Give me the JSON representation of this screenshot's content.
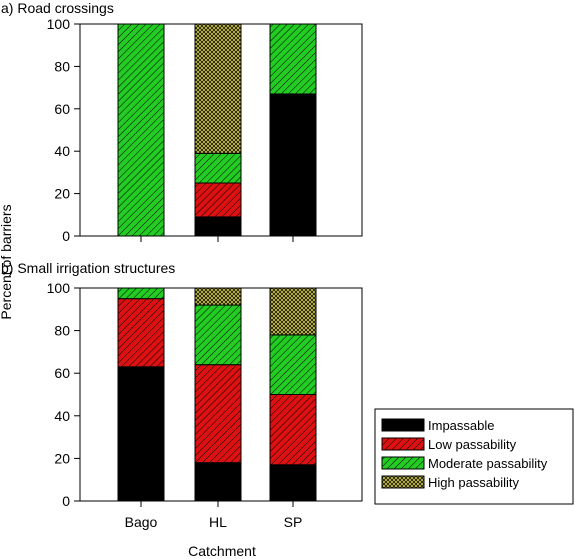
{
  "figure": {
    "ylabel": "Percent of barriers",
    "xlabel": "Catchment"
  },
  "legend": {
    "placement": "bottom-right",
    "items": [
      {
        "key": "impassable",
        "label": "Impassable"
      },
      {
        "key": "low",
        "label": "Low passability"
      },
      {
        "key": "moderate",
        "label": "Moderate passability"
      },
      {
        "key": "high",
        "label": "High passability"
      }
    ]
  },
  "colors": {
    "impassable": "#000000",
    "low": "#dd1111",
    "moderate": "#22cc22",
    "high": "#c9c244"
  },
  "chart_data": [
    {
      "type": "bar",
      "stacked": true,
      "title": "a) Road crossings",
      "categories": [
        "Bago",
        "HL",
        "SP"
      ],
      "ylim": [
        0,
        100
      ],
      "yticks": [
        0,
        20,
        40,
        60,
        80,
        100
      ],
      "grid": false,
      "series": [
        {
          "name": "Impassable",
          "key": "impassable",
          "values": [
            0,
            9,
            67
          ]
        },
        {
          "name": "Low passability",
          "key": "low",
          "values": [
            0,
            16,
            0
          ]
        },
        {
          "name": "Moderate passability",
          "key": "moderate",
          "values": [
            100,
            14,
            33
          ]
        },
        {
          "name": "High passability",
          "key": "high",
          "values": [
            0,
            61,
            0
          ]
        }
      ]
    },
    {
      "type": "bar",
      "stacked": true,
      "title": "b) Small irrigation structures",
      "categories": [
        "Bago",
        "HL",
        "SP"
      ],
      "ylim": [
        0,
        100
      ],
      "yticks": [
        0,
        20,
        40,
        60,
        80,
        100
      ],
      "grid": false,
      "series": [
        {
          "name": "Impassable",
          "key": "impassable",
          "values": [
            63,
            18,
            17
          ]
        },
        {
          "name": "Low passability",
          "key": "low",
          "values": [
            32,
            46,
            33
          ]
        },
        {
          "name": "Moderate passability",
          "key": "moderate",
          "values": [
            5,
            28,
            28
          ]
        },
        {
          "name": "High passability",
          "key": "high",
          "values": [
            0,
            8,
            22
          ]
        }
      ]
    }
  ]
}
